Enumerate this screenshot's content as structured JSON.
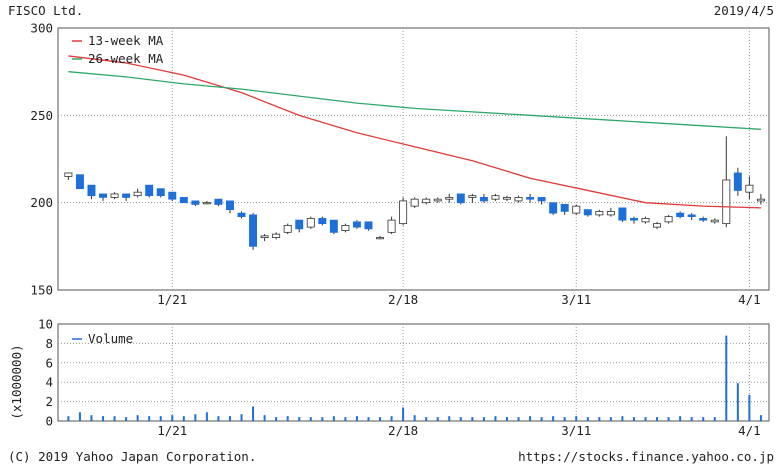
{
  "header": {
    "company": "FISCO Ltd.",
    "date": "2019/4/5"
  },
  "footer": {
    "copyright": "(C) 2019 Yahoo Japan Corporation.",
    "url": "https://stocks.finance.yahoo.co.jp"
  },
  "colors": {
    "up": "#ffffff",
    "down": "#1f6fd8",
    "candle_line": "#333333",
    "ma13": "#e03a3a",
    "ma26": "#2ea86a",
    "volume": "#1f6fd8",
    "grid": "#9a9a9a"
  },
  "chart_data": [
    {
      "type": "candlestick",
      "ylim": [
        150,
        300
      ],
      "yticks": [
        150,
        200,
        250,
        300
      ],
      "xtick_labels": [
        {
          "label": "1/21",
          "index": 9
        },
        {
          "label": "2/18",
          "index": 29
        },
        {
          "label": "3/11",
          "index": 44
        },
        {
          "label": "4/1",
          "index": 59
        }
      ],
      "legend": [
        "13-week MA",
        "26-week MA"
      ],
      "candles": [
        [
          215,
          217,
          213,
          217
        ],
        [
          216,
          216,
          208,
          208
        ],
        [
          210,
          210,
          202,
          204
        ],
        [
          205,
          205,
          201,
          203
        ],
        [
          203,
          206,
          202,
          205
        ],
        [
          205,
          205,
          201,
          203
        ],
        [
          204,
          208,
          203,
          206
        ],
        [
          210,
          210,
          203,
          204
        ],
        [
          208,
          208,
          203,
          204
        ],
        [
          206,
          206,
          201,
          202
        ],
        [
          203,
          203,
          200,
          200
        ],
        [
          201,
          201,
          198,
          199
        ],
        [
          200,
          201,
          199,
          200
        ],
        [
          202,
          202,
          198,
          199
        ],
        [
          201,
          201,
          194,
          196
        ],
        [
          194,
          195,
          191,
          192
        ],
        [
          193,
          194,
          173,
          175
        ],
        [
          180,
          182,
          178,
          181
        ],
        [
          180,
          183,
          179,
          182
        ],
        [
          183,
          188,
          182,
          187
        ],
        [
          190,
          190,
          183,
          185
        ],
        [
          186,
          192,
          185,
          191
        ],
        [
          191,
          192,
          187,
          188
        ],
        [
          190,
          190,
          182,
          183
        ],
        [
          184,
          188,
          183,
          187
        ],
        [
          189,
          190,
          185,
          186
        ],
        [
          189,
          189,
          184,
          185
        ],
        [
          180,
          181,
          179,
          180
        ],
        [
          183,
          192,
          182,
          190
        ],
        [
          188,
          203,
          187,
          201
        ],
        [
          198,
          203,
          197,
          202
        ],
        [
          200,
          203,
          199,
          202
        ],
        [
          201,
          203,
          200,
          202
        ],
        [
          202,
          205,
          200,
          203
        ],
        [
          205,
          205,
          199,
          200
        ],
        [
          203,
          205,
          200,
          204
        ],
        [
          203,
          205,
          200,
          201
        ],
        [
          202,
          205,
          201,
          204
        ],
        [
          202,
          204,
          201,
          203
        ],
        [
          201,
          204,
          200,
          203
        ],
        [
          203,
          205,
          200,
          202
        ],
        [
          203,
          203,
          199,
          201
        ],
        [
          200,
          200,
          193,
          194
        ],
        [
          199,
          199,
          193,
          195
        ],
        [
          194,
          199,
          193,
          198
        ],
        [
          196,
          196,
          192,
          193
        ],
        [
          193,
          196,
          192,
          195
        ],
        [
          193,
          197,
          192,
          195
        ],
        [
          197,
          197,
          189,
          190
        ],
        [
          191,
          192,
          188,
          190
        ],
        [
          189,
          192,
          188,
          191
        ],
        [
          186,
          189,
          185,
          188
        ],
        [
          189,
          193,
          188,
          192
        ],
        [
          194,
          195,
          191,
          192
        ],
        [
          193,
          194,
          190,
          192
        ],
        [
          191,
          192,
          189,
          190
        ],
        [
          189,
          191,
          188,
          190
        ],
        [
          188,
          238,
          186,
          213
        ],
        [
          217,
          220,
          204,
          207
        ],
        [
          206,
          215,
          202,
          210
        ],
        [
          201,
          205,
          199,
          202
        ]
      ],
      "candle_x": [
        0,
        1,
        2,
        3,
        4,
        5,
        6,
        7,
        8,
        9,
        10,
        11,
        12,
        13,
        14,
        15,
        16,
        17,
        18,
        19,
        20,
        21,
        22,
        23,
        24,
        25,
        26,
        27,
        28,
        29,
        30,
        31,
        32,
        33,
        34,
        35,
        36,
        37,
        38,
        39,
        40,
        41,
        42,
        43,
        44,
        45,
        46,
        47,
        48,
        49,
        50,
        51,
        52,
        53,
        54,
        55,
        56,
        57,
        58,
        59,
        60
      ],
      "series": [
        {
          "name": "13-week MA",
          "x": [
            0,
            5,
            10,
            15,
            20,
            25,
            30,
            35,
            40,
            45,
            50,
            55,
            60
          ],
          "values": [
            284,
            280,
            273,
            263,
            250,
            240,
            232,
            224,
            214,
            207,
            200,
            198,
            197
          ]
        },
        {
          "name": "26-week MA",
          "x": [
            0,
            5,
            10,
            15,
            20,
            25,
            30,
            35,
            40,
            45,
            50,
            55,
            60
          ],
          "values": [
            275,
            272,
            268,
            265,
            261,
            257,
            254,
            252,
            250,
            248,
            246,
            244,
            242
          ]
        }
      ]
    },
    {
      "type": "bar",
      "ylabel": "(x1000000)",
      "ylim": [
        0,
        10
      ],
      "yticks": [
        0,
        2,
        4,
        6,
        8,
        10
      ],
      "legend": [
        "Volume"
      ],
      "x": [
        0,
        1,
        2,
        3,
        4,
        5,
        6,
        7,
        8,
        9,
        10,
        11,
        12,
        13,
        14,
        15,
        16,
        17,
        18,
        19,
        20,
        21,
        22,
        23,
        24,
        25,
        26,
        27,
        28,
        29,
        30,
        31,
        32,
        33,
        34,
        35,
        36,
        37,
        38,
        39,
        40,
        41,
        42,
        43,
        44,
        45,
        46,
        47,
        48,
        49,
        50,
        51,
        52,
        53,
        54,
        55,
        56,
        57,
        58,
        59,
        60
      ],
      "values": [
        0.5,
        0.9,
        0.6,
        0.5,
        0.5,
        0.4,
        0.6,
        0.5,
        0.5,
        0.6,
        0.5,
        0.7,
        0.9,
        0.5,
        0.5,
        0.7,
        1.5,
        0.6,
        0.4,
        0.5,
        0.4,
        0.4,
        0.4,
        0.5,
        0.4,
        0.5,
        0.4,
        0.4,
        0.5,
        1.4,
        0.6,
        0.4,
        0.4,
        0.5,
        0.4,
        0.4,
        0.4,
        0.5,
        0.4,
        0.4,
        0.5,
        0.4,
        0.5,
        0.4,
        0.5,
        0.4,
        0.4,
        0.4,
        0.5,
        0.4,
        0.4,
        0.4,
        0.4,
        0.5,
        0.4,
        0.4,
        0.4,
        8.8,
        3.9,
        2.7,
        0.6
      ]
    }
  ]
}
